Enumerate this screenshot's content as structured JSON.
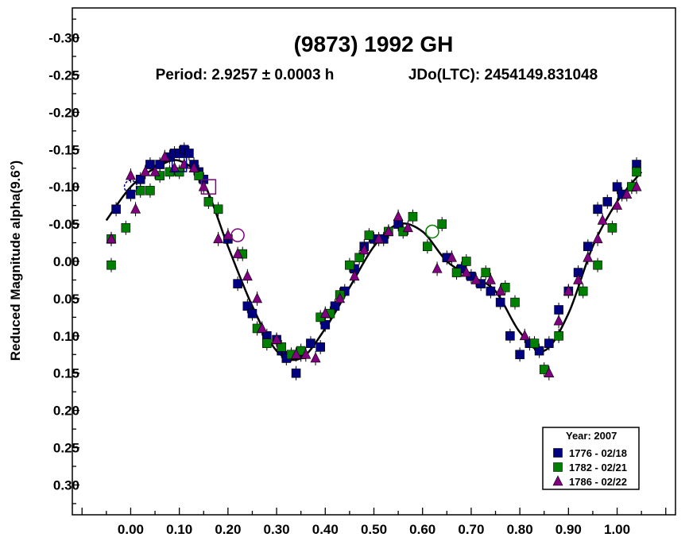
{
  "chart_data": {
    "type": "scatter",
    "title": "(9873) 1992 GH",
    "period_text": "Period: 2.9257 ± 0.0003 h",
    "epoch_text": "JDo(LTC): 2454149.831048",
    "xlabel": "",
    "ylabel": "Reduced Magnitude alpha(9.6°)",
    "xlim": [
      -0.12,
      1.12
    ],
    "ylim": [
      -0.34,
      0.34
    ],
    "y_inverted": true,
    "x_ticks": [
      "0.00",
      "0.10",
      "0.20",
      "0.30",
      "0.40",
      "0.50",
      "0.60",
      "0.70",
      "0.80",
      "0.90",
      "1.00"
    ],
    "y_ticks": [
      "-0.30",
      "-0.25",
      "-0.20",
      "-0.15",
      "-0.10",
      "-0.05",
      "0.00",
      "0.05",
      "0.10",
      "0.15",
      "0.20",
      "0.25",
      "0.30"
    ],
    "grid": false,
    "legend": {
      "title": "Year: 2007",
      "placement": "bottom-right",
      "entries": [
        {
          "label": "1776 - 02/18",
          "marker": "square",
          "color": "#000080"
        },
        {
          "label": "1782 - 02/21",
          "marker": "square",
          "color": "#008000"
        },
        {
          "label": "1786 - 02/22",
          "marker": "triangle",
          "color": "#800080"
        }
      ]
    },
    "fit_curve": {
      "label": "",
      "x": [
        -0.05,
        0.0,
        0.05,
        0.1,
        0.15,
        0.2,
        0.25,
        0.3,
        0.35,
        0.4,
        0.45,
        0.5,
        0.55,
        0.6,
        0.65,
        0.7,
        0.75,
        0.8,
        0.85,
        0.9,
        0.95,
        1.0,
        1.05
      ],
      "y": [
        -0.055,
        -0.1,
        -0.125,
        -0.135,
        -0.105,
        -0.02,
        0.06,
        0.12,
        0.13,
        0.09,
        0.035,
        -0.02,
        -0.05,
        -0.04,
        0.0,
        0.02,
        0.04,
        0.095,
        0.12,
        0.07,
        -0.02,
        -0.08,
        -0.12
      ]
    },
    "series": [
      {
        "name": "1776 - 02/18",
        "marker": "square",
        "color": "#000080",
        "points": [
          [
            -0.03,
            -0.07
          ],
          [
            0.0,
            -0.09
          ],
          [
            0.02,
            -0.11
          ],
          [
            0.04,
            -0.13
          ],
          [
            0.06,
            -0.13
          ],
          [
            0.08,
            -0.14
          ],
          [
            0.09,
            -0.145
          ],
          [
            0.1,
            -0.145
          ],
          [
            0.11,
            -0.15
          ],
          [
            0.12,
            -0.145
          ],
          [
            0.13,
            -0.13
          ],
          [
            0.14,
            -0.12
          ],
          [
            0.15,
            -0.11
          ],
          [
            0.2,
            -0.03
          ],
          [
            0.22,
            0.03
          ],
          [
            0.24,
            0.06
          ],
          [
            0.25,
            0.07
          ],
          [
            0.28,
            0.1
          ],
          [
            0.3,
            0.105
          ],
          [
            0.31,
            0.12
          ],
          [
            0.32,
            0.13
          ],
          [
            0.34,
            0.15
          ],
          [
            0.35,
            0.125
          ],
          [
            0.37,
            0.11
          ],
          [
            0.39,
            0.115
          ],
          [
            0.4,
            0.085
          ],
          [
            0.42,
            0.06
          ],
          [
            0.44,
            0.04
          ],
          [
            0.46,
            0.01
          ],
          [
            0.48,
            -0.02
          ],
          [
            0.5,
            -0.03
          ],
          [
            0.52,
            -0.03
          ],
          [
            0.55,
            -0.05
          ],
          [
            0.65,
            -0.005
          ],
          [
            0.68,
            0.01
          ],
          [
            0.7,
            0.02
          ],
          [
            0.72,
            0.03
          ],
          [
            0.74,
            0.04
          ],
          [
            0.76,
            0.055
          ],
          [
            0.78,
            0.1
          ],
          [
            0.8,
            0.125
          ],
          [
            0.82,
            0.11
          ],
          [
            0.84,
            0.12
          ],
          [
            0.86,
            0.11
          ],
          [
            0.88,
            0.065
          ],
          [
            0.9,
            0.04
          ],
          [
            0.92,
            0.015
          ],
          [
            0.94,
            -0.02
          ],
          [
            0.96,
            -0.07
          ],
          [
            0.98,
            -0.08
          ],
          [
            1.0,
            -0.1
          ],
          [
            1.01,
            -0.09
          ],
          [
            1.03,
            -0.1
          ],
          [
            1.04,
            -0.13
          ]
        ]
      },
      {
        "name": "1782 - 02/21",
        "marker": "square",
        "color": "#008000",
        "points": [
          [
            -0.04,
            -0.03
          ],
          [
            -0.04,
            0.005
          ],
          [
            -0.01,
            -0.045
          ],
          [
            0.02,
            -0.095
          ],
          [
            0.04,
            -0.095
          ],
          [
            0.06,
            -0.115
          ],
          [
            0.08,
            -0.12
          ],
          [
            0.1,
            -0.12
          ],
          [
            0.14,
            -0.115
          ],
          [
            0.16,
            -0.08
          ],
          [
            0.18,
            -0.07
          ],
          [
            0.23,
            -0.01
          ],
          [
            0.26,
            0.09
          ],
          [
            0.28,
            0.11
          ],
          [
            0.31,
            0.115
          ],
          [
            0.33,
            0.125
          ],
          [
            0.35,
            0.12
          ],
          [
            0.39,
            0.075
          ],
          [
            0.41,
            0.07
          ],
          [
            0.43,
            0.045
          ],
          [
            0.45,
            0.005
          ],
          [
            0.47,
            -0.005
          ],
          [
            0.49,
            -0.035
          ],
          [
            0.53,
            -0.04
          ],
          [
            0.56,
            -0.04
          ],
          [
            0.58,
            -0.06
          ],
          [
            0.61,
            -0.02
          ],
          [
            0.64,
            -0.05
          ],
          [
            0.67,
            0.015
          ],
          [
            0.69,
            0.0
          ],
          [
            0.73,
            0.015
          ],
          [
            0.77,
            0.035
          ],
          [
            0.79,
            0.055
          ],
          [
            0.83,
            0.11
          ],
          [
            0.85,
            0.145
          ],
          [
            0.88,
            0.1
          ],
          [
            0.93,
            0.04
          ],
          [
            0.96,
            0.005
          ],
          [
            0.99,
            -0.045
          ],
          [
            1.03,
            -0.1
          ],
          [
            1.04,
            -0.12
          ]
        ]
      },
      {
        "name": "1786 - 02/22",
        "marker": "triangle",
        "color": "#800080",
        "points": [
          [
            -0.04,
            -0.03
          ],
          [
            0.0,
            -0.115
          ],
          [
            0.01,
            -0.07
          ],
          [
            0.03,
            -0.12
          ],
          [
            0.05,
            -0.12
          ],
          [
            0.07,
            -0.14
          ],
          [
            0.09,
            -0.125
          ],
          [
            0.11,
            -0.13
          ],
          [
            0.13,
            -0.125
          ],
          [
            0.15,
            -0.1
          ],
          [
            0.18,
            -0.03
          ],
          [
            0.2,
            -0.035
          ],
          [
            0.22,
            -0.01
          ],
          [
            0.24,
            0.02
          ],
          [
            0.26,
            0.05
          ],
          [
            0.27,
            0.09
          ],
          [
            0.3,
            0.105
          ],
          [
            0.34,
            0.125
          ],
          [
            0.36,
            0.125
          ],
          [
            0.38,
            0.13
          ],
          [
            0.4,
            0.07
          ],
          [
            0.43,
            0.05
          ],
          [
            0.46,
            0.02
          ],
          [
            0.48,
            -0.015
          ],
          [
            0.51,
            -0.03
          ],
          [
            0.53,
            -0.04
          ],
          [
            0.55,
            -0.06
          ],
          [
            0.57,
            -0.045
          ],
          [
            0.63,
            0.01
          ],
          [
            0.66,
            -0.005
          ],
          [
            0.69,
            0.015
          ],
          [
            0.71,
            0.025
          ],
          [
            0.74,
            0.025
          ],
          [
            0.76,
            0.04
          ],
          [
            0.81,
            0.1
          ],
          [
            0.86,
            0.15
          ],
          [
            0.88,
            0.08
          ],
          [
            0.9,
            0.04
          ],
          [
            0.92,
            0.025
          ],
          [
            0.94,
            -0.005
          ],
          [
            0.96,
            -0.03
          ],
          [
            0.97,
            -0.055
          ],
          [
            1.0,
            -0.075
          ],
          [
            1.02,
            -0.09
          ],
          [
            1.04,
            -0.1
          ]
        ]
      }
    ],
    "highlight_markers": [
      {
        "x": 0.0,
        "y": -0.1,
        "shape": "dashed-circle",
        "color": "#000080"
      },
      {
        "x": 0.1,
        "y": -0.13,
        "shape": "open-square",
        "color": "#000080"
      },
      {
        "x": 0.16,
        "y": -0.1,
        "shape": "open-square",
        "color": "#800080"
      },
      {
        "x": 0.22,
        "y": -0.035,
        "shape": "open-circle",
        "color": "#800080"
      },
      {
        "x": 0.62,
        "y": -0.04,
        "shape": "open-circle",
        "color": "#008000"
      }
    ]
  }
}
